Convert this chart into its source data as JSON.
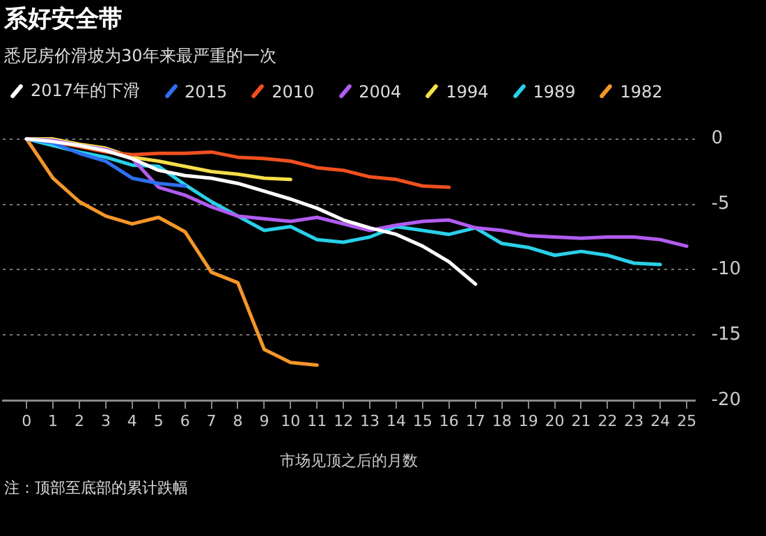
{
  "chart_data": {
    "type": "line",
    "title": "系好安全带",
    "subtitle": "悉尼房价滑坡为30年来最严重的一次",
    "xlabel": "市场见顶之后的月数",
    "annotations": [
      "注：顶部至底部的累计跌幅"
    ],
    "x": [
      0,
      1,
      2,
      3,
      4,
      5,
      6,
      7,
      8,
      9,
      10,
      11,
      12,
      13,
      14,
      15,
      16,
      17,
      18,
      19,
      20,
      21,
      22,
      23,
      24,
      25
    ],
    "series": [
      {
        "name": "2017年的下滑",
        "color": "#ffffff",
        "values": [
          0,
          -0.2,
          -0.5,
          -0.9,
          -1.5,
          -2.4,
          -2.8,
          -3.0,
          -3.4,
          -4.0,
          -4.6,
          -5.3,
          -6.2,
          -6.8,
          -7.3,
          -8.2,
          -9.4,
          -11.1,
          null,
          null,
          null,
          null,
          null,
          null,
          null,
          null
        ]
      },
      {
        "name": "2015",
        "color": "#2f6ff0",
        "values": [
          0,
          -0.3,
          -1.1,
          -1.7,
          -3.0,
          -3.4,
          -3.6,
          null,
          null,
          null,
          null,
          null,
          null,
          null,
          null,
          null,
          null,
          null,
          null,
          null,
          null,
          null,
          null,
          null,
          null,
          null
        ]
      },
      {
        "name": "2010",
        "color": "#f0501e",
        "values": [
          0,
          -0.2,
          -0.6,
          -1.0,
          -1.2,
          -1.1,
          -1.1,
          -1.0,
          -1.4,
          -1.5,
          -1.7,
          -2.2,
          -2.4,
          -2.9,
          -3.1,
          -3.6,
          -3.7,
          null,
          null,
          null,
          null,
          null,
          null,
          null,
          null,
          null
        ]
      },
      {
        "name": "2004",
        "color": "#b05cf0",
        "values": [
          0,
          -0.1,
          -0.5,
          -0.8,
          -1.5,
          -3.7,
          -4.3,
          -5.2,
          -5.9,
          -6.1,
          -6.3,
          -6.0,
          -6.5,
          -7.0,
          -6.6,
          -6.3,
          -6.2,
          -6.8,
          -7.0,
          -7.4,
          -7.5,
          -7.6,
          -7.5,
          -7.5,
          -7.7,
          -8.2
        ]
      },
      {
        "name": "1994",
        "color": "#f5de4a",
        "values": [
          0,
          0,
          -0.4,
          -0.7,
          -1.4,
          -1.7,
          -2.1,
          -2.5,
          -2.7,
          -3.0,
          -3.1,
          null,
          null,
          null,
          null,
          null,
          null,
          null,
          null,
          null,
          null,
          null,
          null,
          null,
          null,
          null
        ]
      },
      {
        "name": "1989",
        "color": "#29d0e8",
        "values": [
          0,
          -0.5,
          -1.0,
          -1.4,
          -2.0,
          -2.1,
          -3.5,
          -4.8,
          -5.9,
          -7.0,
          -6.7,
          -7.7,
          -7.9,
          -7.5,
          -6.7,
          -7.0,
          -7.3,
          -6.8,
          -8.0,
          -8.3,
          -8.9,
          -8.6,
          -8.9,
          -9.5,
          -9.6,
          null
        ]
      },
      {
        "name": "1982",
        "color": "#f5962a",
        "values": [
          0,
          -3.0,
          -4.8,
          -5.9,
          -6.5,
          -6.0,
          -7.1,
          -10.2,
          -11.0,
          -16.1,
          -17.1,
          -17.3,
          null,
          null,
          null,
          null,
          null,
          null,
          null,
          null,
          null,
          null,
          null,
          null,
          null,
          null
        ]
      }
    ],
    "xlim": [
      -0.9,
      25.3
    ],
    "xticks": [
      0,
      1,
      2,
      3,
      4,
      5,
      6,
      7,
      8,
      9,
      10,
      11,
      12,
      13,
      14,
      15,
      16,
      17,
      18,
      19,
      20,
      21,
      22,
      23,
      24,
      25
    ],
    "ylim": [
      -20,
      0
    ],
    "yticks": [
      0,
      -5,
      -10,
      -15,
      -20
    ],
    "grid": "y",
    "legend": "top left",
    "marker": "none",
    "line_style": "solid"
  }
}
